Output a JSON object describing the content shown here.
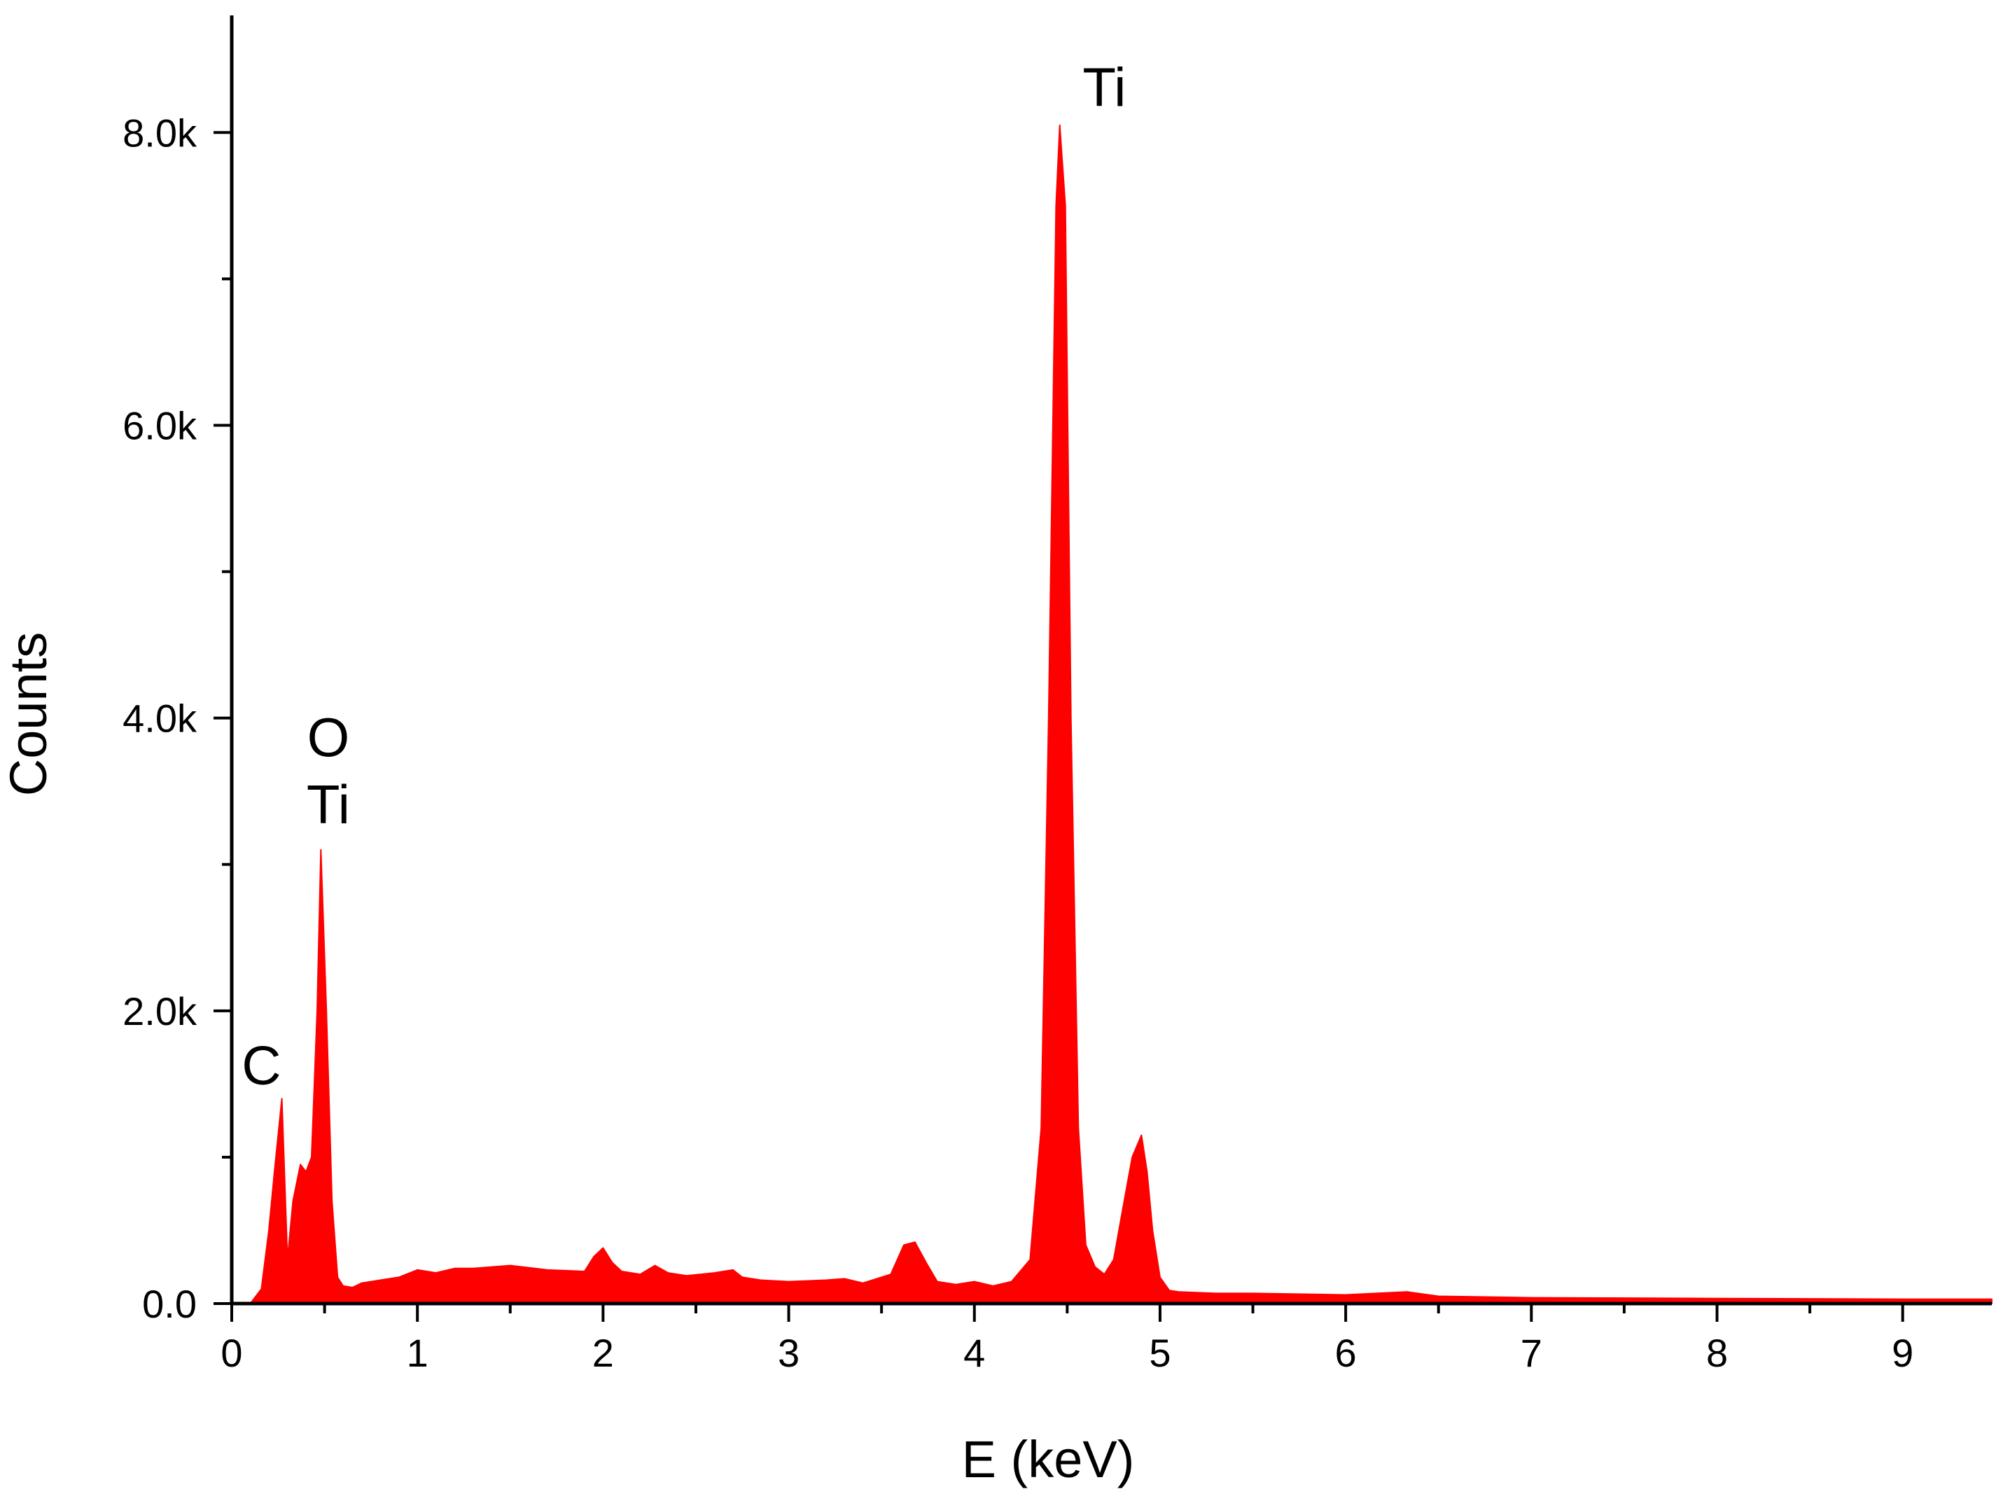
{
  "chart_data": {
    "type": "area",
    "title": "",
    "xlabel": "E (keV)",
    "ylabel": "Counts",
    "xlim": [
      0,
      9.48
    ],
    "ylim": [
      0,
      8800
    ],
    "grid": false,
    "legend": "none",
    "fill_color": "#ff0000",
    "x_ticks": [
      0,
      1,
      2,
      3,
      4,
      5,
      6,
      7,
      8,
      9
    ],
    "x_tick_labels": [
      "0",
      "1",
      "2",
      "3",
      "4",
      "5",
      "6",
      "7",
      "8",
      "9"
    ],
    "y_ticks": [
      0,
      2000,
      4000,
      6000,
      8000
    ],
    "y_tick_labels": [
      "0.0",
      "2.0k",
      "4.0k",
      "6.0k",
      "8.0k"
    ],
    "series": [
      {
        "x": [
          0.0,
          0.1,
          0.16,
          0.2,
          0.23,
          0.27,
          0.3,
          0.33,
          0.37,
          0.4,
          0.43,
          0.46,
          0.48,
          0.51,
          0.54,
          0.57,
          0.6,
          0.65,
          0.7,
          0.8,
          0.9,
          1.0,
          1.1,
          1.2,
          1.3,
          1.5,
          1.7,
          1.9,
          1.95,
          2.0,
          2.05,
          2.1,
          2.2,
          2.28,
          2.35,
          2.45,
          2.6,
          2.7,
          2.75,
          2.85,
          3.0,
          3.2,
          3.3,
          3.4,
          3.55,
          3.62,
          3.68,
          3.74,
          3.8,
          3.9,
          4.0,
          4.1,
          4.2,
          4.3,
          4.36,
          4.4,
          4.44,
          4.46,
          4.49,
          4.52,
          4.56,
          4.6,
          4.65,
          4.7,
          4.75,
          4.8,
          4.85,
          4.9,
          4.93,
          4.96,
          5.0,
          5.05,
          5.1,
          5.3,
          5.5,
          6.0,
          6.33,
          6.5,
          7.0,
          8.0,
          9.0,
          9.48
        ],
        "y": [
          0,
          0,
          100,
          500,
          900,
          1400,
          300,
          700,
          950,
          900,
          1000,
          2000,
          3100,
          2000,
          700,
          180,
          120,
          110,
          140,
          160,
          180,
          230,
          210,
          240,
          240,
          260,
          230,
          220,
          320,
          380,
          280,
          220,
          200,
          260,
          210,
          190,
          210,
          230,
          180,
          160,
          150,
          160,
          170,
          140,
          200,
          400,
          420,
          280,
          150,
          130,
          150,
          120,
          150,
          300,
          1200,
          4000,
          7500,
          8050,
          7500,
          4000,
          1200,
          400,
          250,
          200,
          300,
          650,
          1000,
          1150,
          900,
          500,
          180,
          90,
          80,
          70,
          70,
          60,
          80,
          50,
          40,
          35,
          30,
          30
        ]
      }
    ],
    "annotations": [
      {
        "text": "C",
        "x": 0.16,
        "y": 1500
      },
      {
        "text": "O",
        "x": 0.52,
        "y": 3740
      },
      {
        "text": "Ti",
        "x": 0.52,
        "y": 3280
      },
      {
        "text": "Ti",
        "x": 4.7,
        "y": 8180
      }
    ]
  }
}
